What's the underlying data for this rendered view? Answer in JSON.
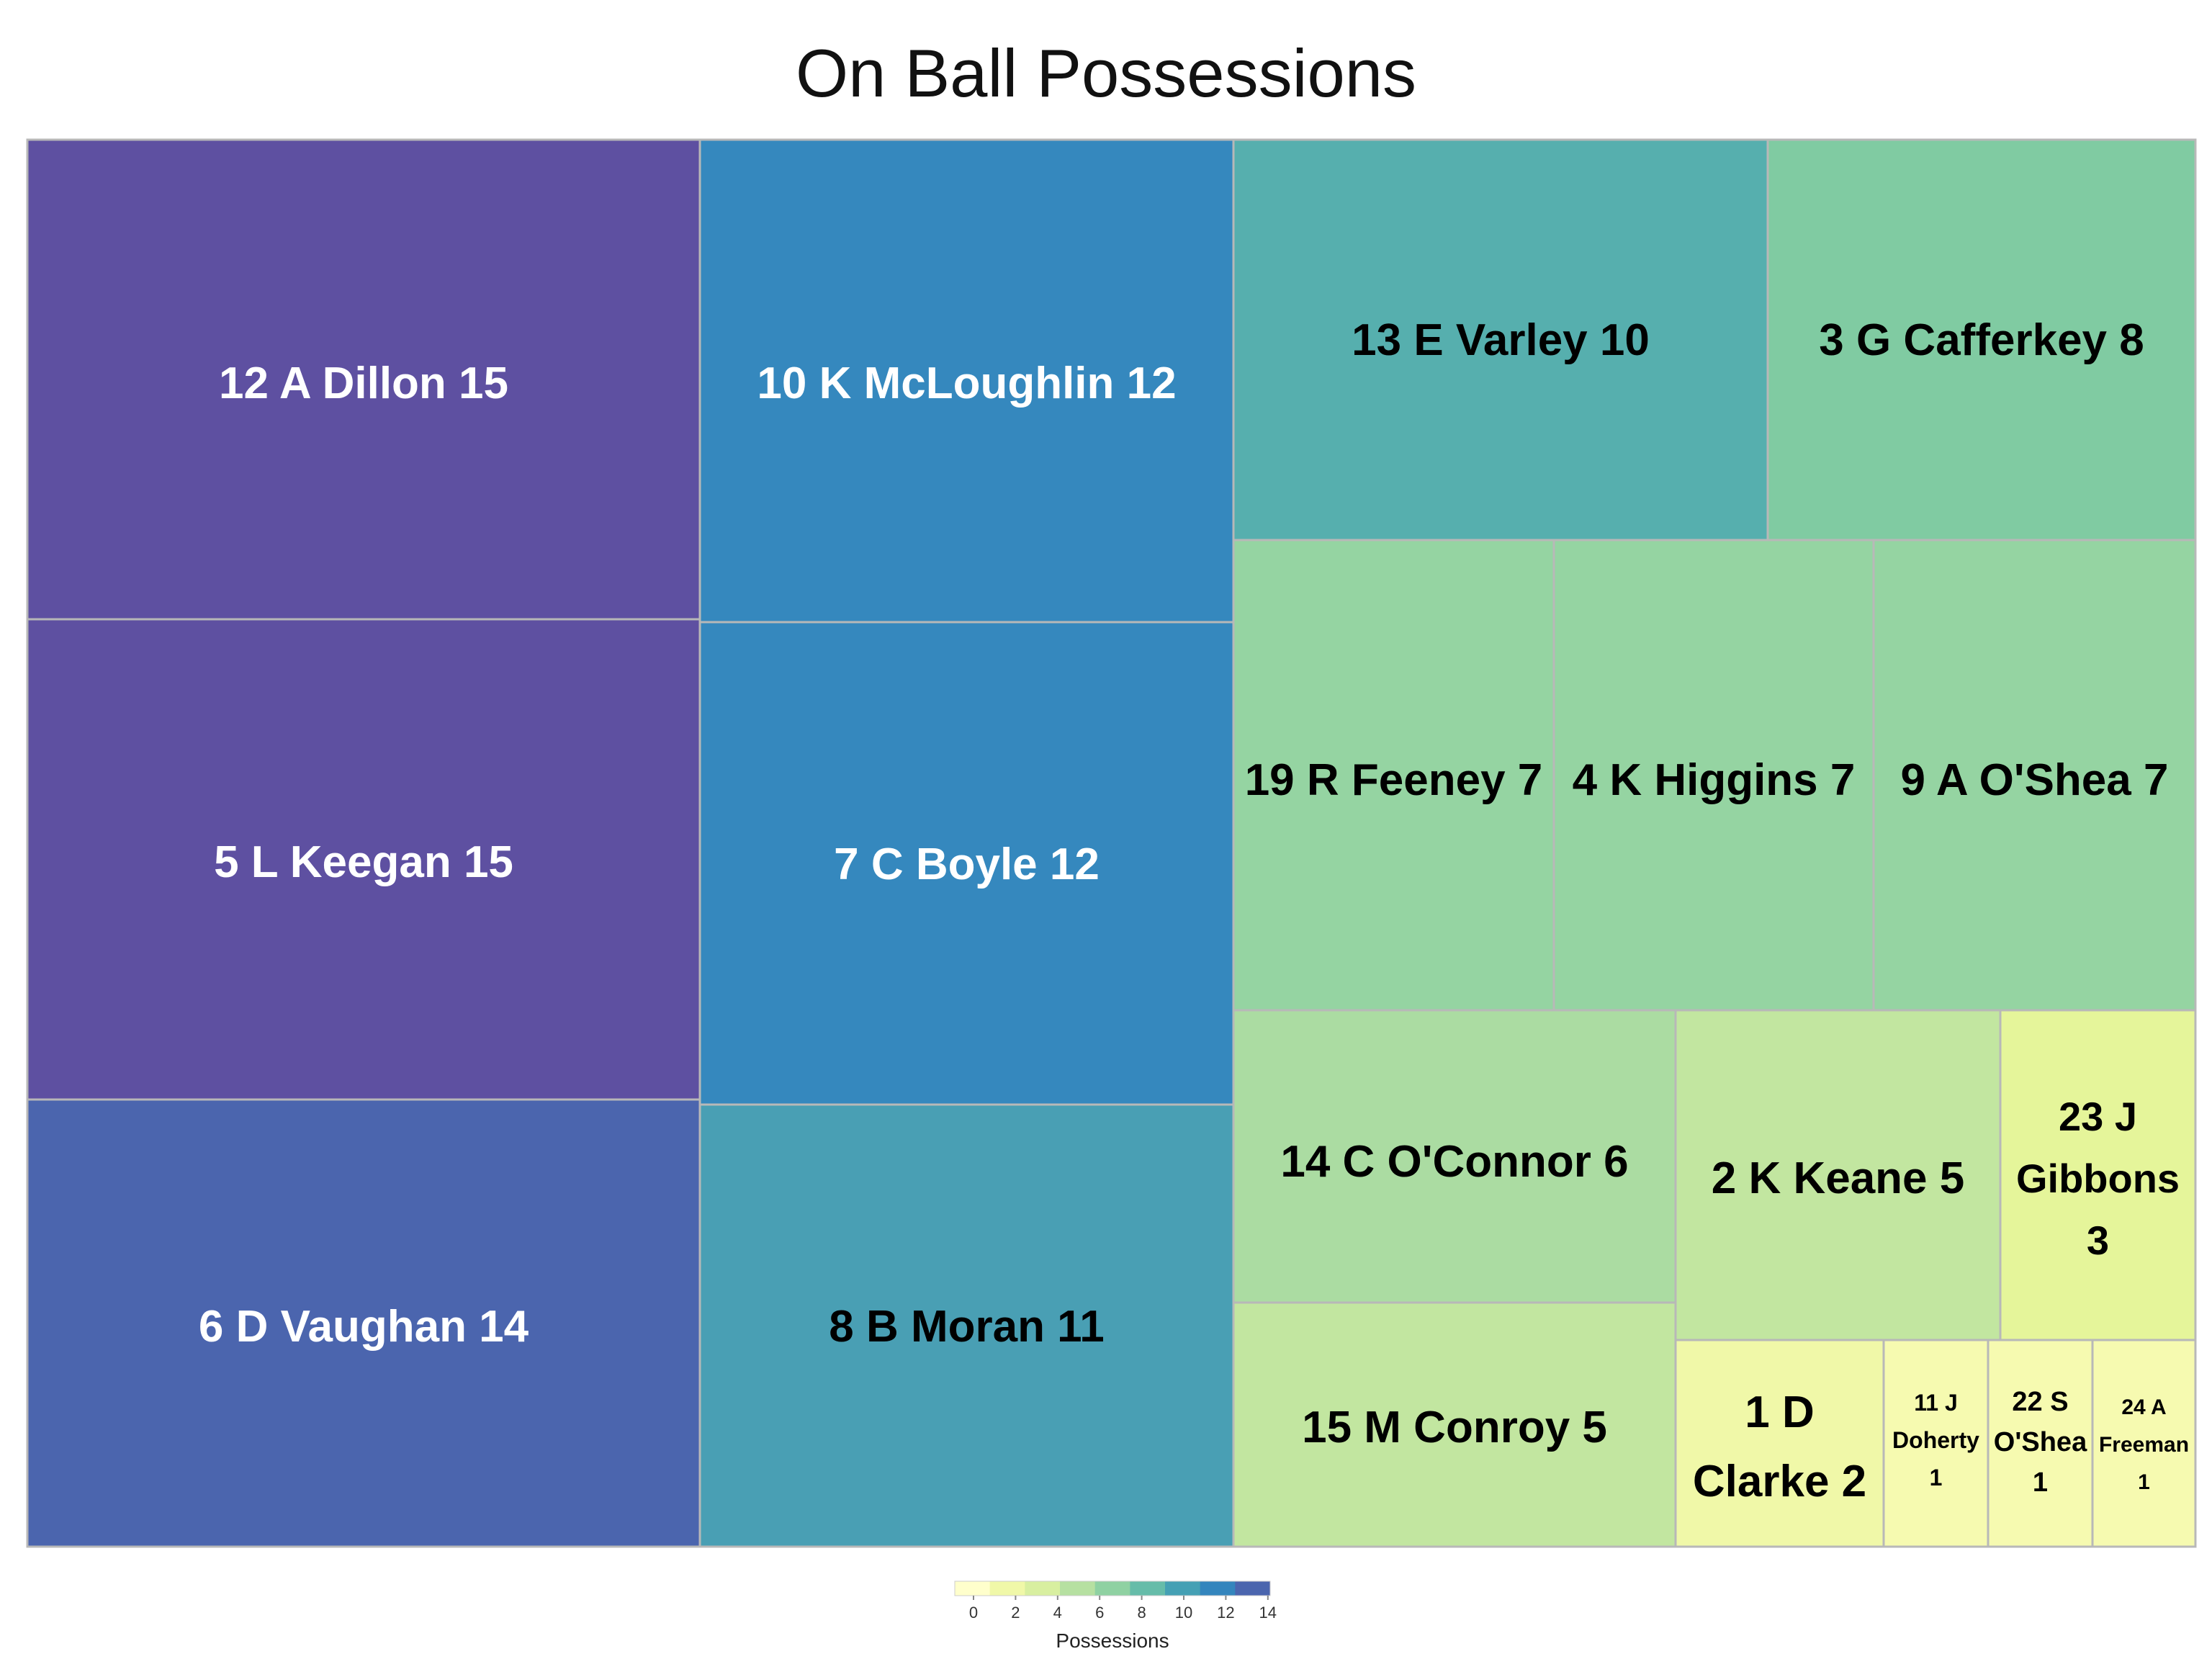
{
  "chart_data": {
    "type": "treemap",
    "title": "On Ball Possessions",
    "tiles": [
      {
        "label": "12 A Dillon 15",
        "value": 15,
        "color": "#5e50a1",
        "text_color": "#ffffff"
      },
      {
        "label": "5 L Keegan 15",
        "value": 15,
        "color": "#5e50a1",
        "text_color": "#ffffff"
      },
      {
        "label": "6 D Vaughan 14",
        "value": 14,
        "color": "#4b65ae",
        "text_color": "#ffffff"
      },
      {
        "label": "10 K McLoughlin 12",
        "value": 12,
        "color": "#3588be",
        "text_color": "#ffffff"
      },
      {
        "label": "7 C Boyle 12",
        "value": 12,
        "color": "#3588be",
        "text_color": "#ffffff"
      },
      {
        "label": "8 B Moran 11",
        "value": 11,
        "color": "#499fb4",
        "text_color": "#000000"
      },
      {
        "label": "13 E Varley 10",
        "value": 10,
        "color": "#56afae",
        "text_color": "#000000"
      },
      {
        "label": "3 G Cafferkey 8",
        "value": 8,
        "color": "#80cba2",
        "text_color": "#000000"
      },
      {
        "label": "19 R Feeney 7",
        "value": 7,
        "color": "#95d4a2",
        "text_color": "#000000"
      },
      {
        "label": "4 K Higgins 7",
        "value": 7,
        "color": "#95d4a2",
        "text_color": "#000000"
      },
      {
        "label": "9 A O'Shea 7",
        "value": 7,
        "color": "#95d4a2",
        "text_color": "#000000"
      },
      {
        "label": "14 C O'Connor 6",
        "value": 6,
        "color": "#abdca2",
        "text_color": "#000000"
      },
      {
        "label": "2 K Keane 5",
        "value": 5,
        "color": "#c2e6a0",
        "text_color": "#000000"
      },
      {
        "label": "15 M Conroy 5",
        "value": 5,
        "color": "#c2e6a0",
        "text_color": "#000000"
      },
      {
        "label": "23 J Gibbons 3",
        "label_lines": [
          "23 J",
          "Gibbons",
          "3"
        ],
        "value": 3,
        "color": "#e5f59a",
        "text_color": "#000000"
      },
      {
        "label": "1 D Clarke 2",
        "label_lines": [
          "1 D",
          "Clarke 2"
        ],
        "value": 2,
        "color": "#f0f8a8",
        "text_color": "#000000"
      },
      {
        "label": "11 J Doherty 1",
        "label_lines": [
          "11 J",
          "Doherty",
          "1"
        ],
        "value": 1,
        "color": "#f6fab0",
        "text_color": "#000000"
      },
      {
        "label": "22 S O'Shea 1",
        "label_lines": [
          "22 S",
          "O'Shea",
          "1"
        ],
        "value": 1,
        "color": "#f6fab0",
        "text_color": "#000000"
      },
      {
        "label": "24 A Freeman 1",
        "label_lines": [
          "24 A",
          "Freeman",
          "1"
        ],
        "value": 1,
        "color": "#f6fab0",
        "text_color": "#000000"
      }
    ],
    "legend": {
      "title": "Possessions",
      "ticks": [
        "0",
        "2",
        "4",
        "6",
        "8",
        "10",
        "12",
        "14"
      ],
      "range": [
        0,
        15
      ],
      "colors": [
        "#ffffcc",
        "#f0f8a8",
        "#d8efa0",
        "#b6e0a1",
        "#8fd1a2",
        "#66bca9",
        "#45a0b4",
        "#3485bd",
        "#4b65ae"
      ],
      "placement": "bottom-center"
    }
  }
}
